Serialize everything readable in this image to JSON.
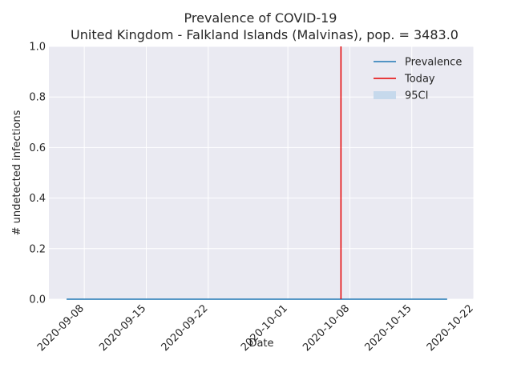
{
  "chart_data": {
    "type": "line",
    "title": "Prevalence of COVID-19",
    "subtitle": "United Kingdom - Falkland Islands (Malvinas), pop. = 3483.0",
    "xlabel": "Date",
    "ylabel": "# undetected infections",
    "x_ticks": [
      "2020-09-08",
      "2020-09-15",
      "2020-09-22",
      "2020-10-01",
      "2020-10-08",
      "2020-10-15",
      "2020-10-22"
    ],
    "y_ticks": [
      "0.0",
      "0.2",
      "0.4",
      "0.6",
      "0.8",
      "1.0"
    ],
    "xlim": [
      "2020-09-04",
      "2020-10-22"
    ],
    "ylim": [
      0,
      1
    ],
    "grid": true,
    "legend_position": "top-right",
    "series": [
      {
        "name": "Prevalence",
        "color": "#1f77b4",
        "x": [
          "2020-09-06",
          "2020-10-19"
        ],
        "y": [
          0,
          0
        ]
      }
    ],
    "today": {
      "name": "Today",
      "color": "#e60000",
      "x": "2020-10-07"
    },
    "ci": {
      "name": "95CI",
      "color": "#c6d9ec",
      "lower": [
        0,
        0
      ],
      "upper": [
        0,
        0
      ]
    },
    "colors": {
      "background": "#eaeaf2",
      "grid": "#ffffff"
    }
  }
}
